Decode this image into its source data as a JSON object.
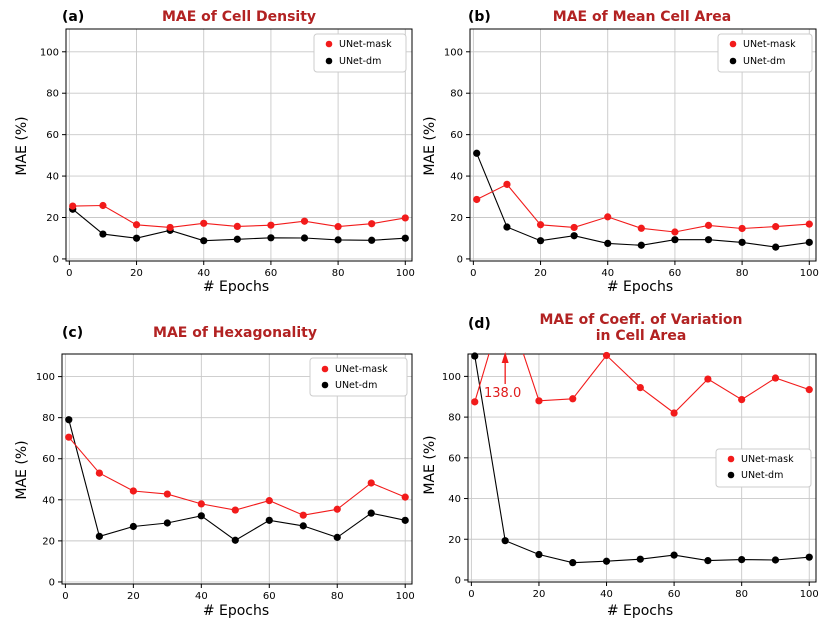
{
  "chart_data": [
    {
      "type": "line",
      "panel_label": "(a)",
      "title": [
        "MAE of Cell Density"
      ],
      "xlabel": "# Epochs",
      "ylabel": "MAE (%)",
      "xlim": [
        -1,
        102
      ],
      "ylim": [
        -1,
        111
      ],
      "xticks": [
        0,
        20,
        40,
        60,
        80,
        100
      ],
      "yticks": [
        0,
        20,
        40,
        60,
        80,
        100
      ],
      "grid": true,
      "legend_position": "top-right",
      "x": [
        1,
        10,
        20,
        30,
        40,
        50,
        60,
        70,
        80,
        90,
        100
      ],
      "series": [
        {
          "name": "UNet-mask",
          "color": "#f21b1b",
          "values": [
            25.5,
            25.8,
            16.5,
            15.2,
            17.2,
            15.7,
            16.3,
            18.2,
            15.6,
            17.0,
            19.8
          ]
        },
        {
          "name": "UNet-dm",
          "color": "#000000",
          "values": [
            24,
            12,
            10,
            13.8,
            8.8,
            9.5,
            10.2,
            10.1,
            9.2,
            9.0,
            10.0
          ]
        }
      ]
    },
    {
      "type": "line",
      "panel_label": "(b)",
      "title": [
        "MAE of Mean Cell Area"
      ],
      "xlabel": "# Epochs",
      "ylabel": "MAE (%)",
      "xlim": [
        -1,
        102
      ],
      "ylim": [
        -1,
        111
      ],
      "xticks": [
        0,
        20,
        40,
        60,
        80,
        100
      ],
      "yticks": [
        0,
        20,
        40,
        60,
        80,
        100
      ],
      "grid": true,
      "legend_position": "top-right",
      "x": [
        1,
        10,
        20,
        30,
        40,
        50,
        60,
        70,
        80,
        90,
        100
      ],
      "series": [
        {
          "name": "UNet-mask",
          "color": "#f21b1b",
          "values": [
            28.7,
            36,
            16.5,
            15.2,
            20.3,
            14.8,
            13,
            16.2,
            14.7,
            15.6,
            16.8
          ]
        },
        {
          "name": "UNet-dm",
          "color": "#000000",
          "values": [
            51,
            15.4,
            8.8,
            11.2,
            7.5,
            6.6,
            9.3,
            9.3,
            8.0,
            5.7,
            8.0
          ]
        }
      ]
    },
    {
      "type": "line",
      "panel_label": "(c)",
      "title": [
        "MAE of Hexagonality"
      ],
      "xlabel": "# Epochs",
      "ylabel": "MAE (%)",
      "xlim": [
        -1,
        102
      ],
      "ylim": [
        -1,
        111
      ],
      "xticks": [
        0,
        20,
        40,
        60,
        80,
        100
      ],
      "yticks": [
        0,
        20,
        40,
        60,
        80,
        100
      ],
      "grid": true,
      "legend_position": "top-right",
      "x": [
        1,
        10,
        20,
        30,
        40,
        50,
        60,
        70,
        80,
        90,
        100
      ],
      "series": [
        {
          "name": "UNet-mask",
          "color": "#f21b1b",
          "values": [
            70.5,
            53,
            44.3,
            42.8,
            38,
            35,
            39.6,
            32.5,
            35.4,
            48.2,
            41.3
          ]
        },
        {
          "name": "UNet-dm",
          "color": "#000000",
          "values": [
            79,
            22.2,
            27,
            28.7,
            32.2,
            20.3,
            30,
            27.3,
            21.7,
            33.5,
            30
          ]
        }
      ]
    },
    {
      "type": "line",
      "panel_label": "(d)",
      "title": [
        "MAE of Coeff. of Variation",
        "in Cell Area"
      ],
      "xlabel": "# Epochs",
      "ylabel": "MAE (%)",
      "xlim": [
        -1,
        102
      ],
      "ylim": [
        -1,
        111
      ],
      "xticks": [
        0,
        20,
        40,
        60,
        80,
        100
      ],
      "yticks": [
        0,
        20,
        40,
        60,
        80,
        100
      ],
      "grid": true,
      "legend_position": "center-right",
      "x": [
        1,
        10,
        20,
        30,
        40,
        50,
        60,
        70,
        80,
        90,
        100
      ],
      "series": [
        {
          "name": "UNet-mask",
          "color": "#f21b1b",
          "values": [
            87.5,
            138.0,
            88,
            89,
            110.3,
            94.5,
            82,
            98.7,
            88.6,
            99.2,
            93.5
          ]
        },
        {
          "name": "UNet-dm",
          "color": "#000000",
          "values": [
            110,
            19.3,
            12.5,
            8.5,
            9.2,
            10.2,
            12.2,
            9.5,
            10,
            9.8,
            11.2
          ]
        }
      ],
      "annotations": [
        {
          "text": "138.0",
          "x": 10,
          "y": 138.0,
          "color": "#f21b1b",
          "note_arrow": "up"
        }
      ]
    }
  ]
}
